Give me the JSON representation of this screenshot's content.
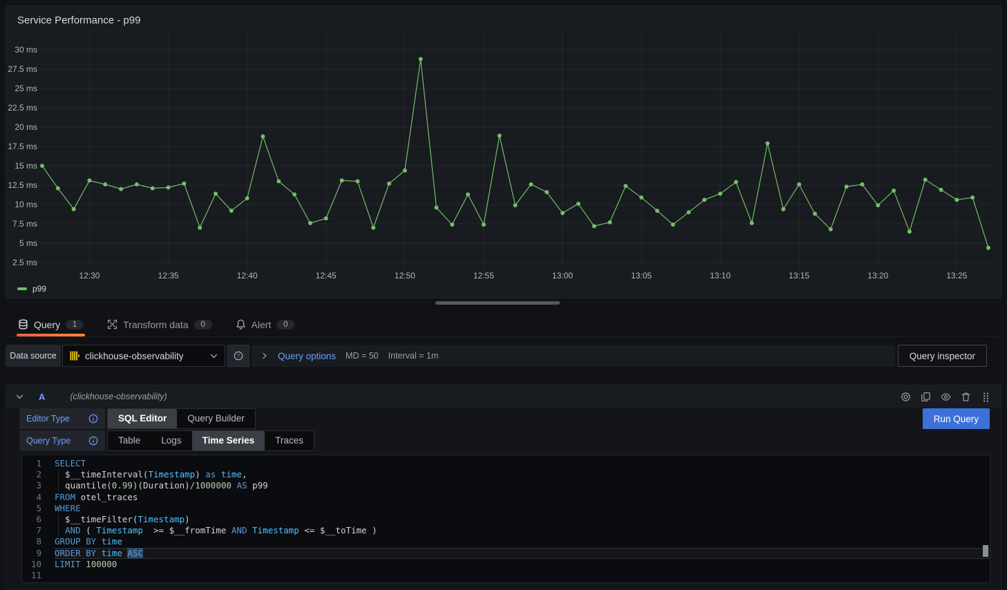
{
  "panel": {
    "title": "Service Performance - p99"
  },
  "chart_data": {
    "type": "line",
    "title": "Service Performance - p99",
    "unit": "ms",
    "grid": true,
    "legend_position": "bottom-left",
    "ylim": [
      1.25,
      31.25
    ],
    "y_tick_values": [
      30,
      27.5,
      25,
      22.5,
      20,
      17.5,
      15,
      12.5,
      10,
      7.5,
      5,
      2.5
    ],
    "y_tick_labels": [
      "30 ms",
      "27.5 ms",
      "25 ms",
      "22.5 ms",
      "20 ms",
      "17.5 ms",
      "15 ms",
      "12.5 ms",
      "10 ms",
      "7.5 ms",
      "5 ms",
      "2.5 ms"
    ],
    "x": [
      "12:27",
      "12:28",
      "12:29",
      "12:30",
      "12:31",
      "12:32",
      "12:33",
      "12:34",
      "12:35",
      "12:36",
      "12:37",
      "12:38",
      "12:39",
      "12:40",
      "12:41",
      "12:42",
      "12:43",
      "12:44",
      "12:45",
      "12:46",
      "12:47",
      "12:48",
      "12:49",
      "12:50",
      "12:51",
      "12:52",
      "12:53",
      "12:54",
      "12:55",
      "12:56",
      "12:57",
      "12:58",
      "12:59",
      "13:00",
      "13:01",
      "13:02",
      "13:03",
      "13:04",
      "13:05",
      "13:06",
      "13:07",
      "13:08",
      "13:09",
      "13:10",
      "13:11",
      "13:12",
      "13:13",
      "13:14",
      "13:15",
      "13:16",
      "13:17",
      "13:18",
      "13:19",
      "13:20",
      "13:21",
      "13:22",
      "13:23",
      "13:24",
      "13:25",
      "13:26",
      "13:27"
    ],
    "x_tick_index": [
      3,
      8,
      13,
      18,
      23,
      28,
      33,
      38,
      43,
      48,
      53,
      58
    ],
    "x_tick_labels": [
      "12:30",
      "12:35",
      "12:40",
      "12:45",
      "12:50",
      "12:55",
      "13:00",
      "13:05",
      "13:10",
      "13:15",
      "13:20",
      "13:25"
    ],
    "series": [
      {
        "name": "p99",
        "color": "#73bf69",
        "values": [
          15.0,
          12.1,
          9.4,
          13.1,
          12.6,
          12.0,
          12.6,
          12.1,
          12.2,
          12.7,
          7.0,
          11.4,
          9.2,
          10.8,
          18.8,
          13.0,
          11.3,
          7.6,
          8.2,
          13.1,
          13.0,
          7.0,
          12.7,
          14.4,
          28.8,
          9.6,
          7.4,
          11.3,
          7.4,
          18.9,
          9.9,
          12.6,
          11.6,
          8.9,
          10.1,
          7.2,
          7.7,
          12.4,
          10.9,
          9.2,
          7.4,
          9.0,
          10.6,
          11.4,
          12.9,
          7.6,
          17.9,
          9.4,
          12.6,
          8.8,
          6.8,
          12.3,
          12.6,
          9.9,
          11.8,
          6.5,
          13.2,
          11.9,
          10.6,
          10.9,
          4.4
        ]
      }
    ]
  },
  "tabs": [
    {
      "label": "Query",
      "count": "1",
      "icon": "database",
      "active": true
    },
    {
      "label": "Transform data",
      "count": "0",
      "icon": "transform",
      "active": false
    },
    {
      "label": "Alert",
      "count": "0",
      "icon": "bell",
      "active": false
    }
  ],
  "datasource_row": {
    "label": "Data source",
    "picker_value": "clickhouse-observability",
    "query_options_label": "Query options",
    "md": "MD = 50",
    "interval": "Interval = 1m",
    "inspector_button": "Query inspector"
  },
  "query_row": {
    "ref_id": "A",
    "datasource_hint": "(clickhouse-observability)",
    "editor_type": {
      "label": "Editor Type",
      "options": [
        "SQL Editor",
        "Query Builder"
      ],
      "active": "SQL Editor"
    },
    "query_type": {
      "label": "Query Type",
      "options": [
        "Table",
        "Logs",
        "Time Series",
        "Traces"
      ],
      "active": "Time Series"
    },
    "run_button": "Run Query"
  },
  "sql_editor": {
    "lines": [
      {
        "n": "1",
        "t": [
          [
            "kw",
            "SELECT"
          ]
        ]
      },
      {
        "n": "2",
        "g": true,
        "t": [
          [
            "d",
            "  $__timeInterval("
          ],
          [
            "id",
            "Timestamp"
          ],
          [
            "d",
            ") "
          ],
          [
            "kw",
            "as"
          ],
          [
            "d",
            " "
          ],
          [
            "id",
            "time"
          ],
          [
            "d",
            ","
          ]
        ]
      },
      {
        "n": "3",
        "g": true,
        "t": [
          [
            "d",
            "  quantile("
          ],
          [
            "num",
            "0.99"
          ],
          [
            "d",
            ")(Duration)"
          ],
          [
            "num",
            "/1000000"
          ],
          [
            "d",
            " "
          ],
          [
            "kw",
            "AS"
          ],
          [
            "d",
            " p99"
          ]
        ]
      },
      {
        "n": "4",
        "t": [
          [
            "kw",
            "FROM"
          ],
          [
            "d",
            " otel_traces"
          ]
        ]
      },
      {
        "n": "5",
        "t": [
          [
            "kw",
            "WHERE"
          ]
        ]
      },
      {
        "n": "6",
        "g": true,
        "t": [
          [
            "d",
            "  $__timeFilter("
          ],
          [
            "id",
            "Timestamp"
          ],
          [
            "d",
            ")"
          ]
        ]
      },
      {
        "n": "7",
        "g": true,
        "t": [
          [
            "d",
            "  "
          ],
          [
            "kw",
            "AND"
          ],
          [
            "d",
            " ( "
          ],
          [
            "id",
            "Timestamp"
          ],
          [
            "d",
            "  >= $__fromTime "
          ],
          [
            "kw",
            "AND"
          ],
          [
            "d",
            " "
          ],
          [
            "id",
            "Timestamp"
          ],
          [
            "d",
            " <= $__toTime )"
          ]
        ]
      },
      {
        "n": "8",
        "t": [
          [
            "kw",
            "GROUP BY"
          ],
          [
            "d",
            " "
          ],
          [
            "id",
            "time"
          ]
        ]
      },
      {
        "n": "9",
        "cur": true,
        "t": [
          [
            "kw",
            "ORDER BY"
          ],
          [
            "d",
            " "
          ],
          [
            "id",
            "time"
          ],
          [
            "d",
            " "
          ],
          [
            "kw sel",
            "ASC"
          ]
        ]
      },
      {
        "n": "10",
        "t": [
          [
            "kw",
            "LIMIT"
          ],
          [
            "d",
            " "
          ],
          [
            "num",
            "100000"
          ]
        ]
      },
      {
        "n": "11",
        "t": []
      }
    ]
  },
  "colors": {
    "page_bg": "#111217",
    "panel_bg": "#181b1f",
    "series_green": "#73bf69",
    "tab_accent_gradient": [
      "#f55f3e",
      "#ff8833"
    ],
    "link_blue": "#6e9fff",
    "run_button_blue": "#3d71d9",
    "clickhouse_yellow": "#f5d312",
    "code_keyword": "#569cd6",
    "code_identifier": "#4fc1ff",
    "code_number": "#b5cea8"
  }
}
